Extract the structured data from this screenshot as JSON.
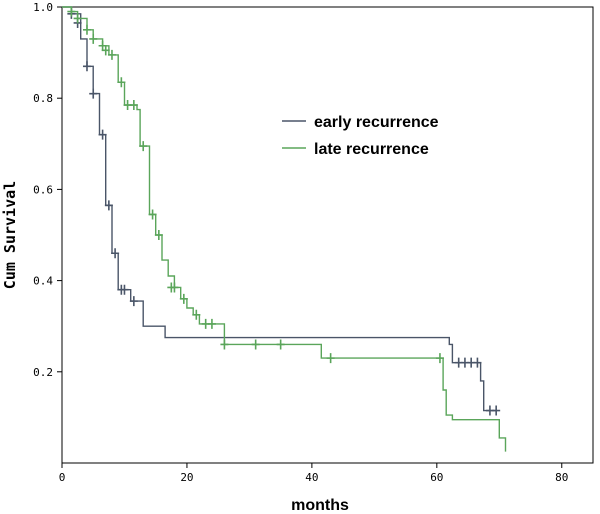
{
  "chart_data": {
    "type": "line",
    "xlabel": "months",
    "ylabel": "Cum Survival",
    "xlim": [
      0,
      85
    ],
    "ylim": [
      0,
      1.0
    ],
    "x_ticks": [
      "0",
      "20",
      "40",
      "60",
      "80"
    ],
    "y_ticks": [
      "0.2",
      "0.4",
      "0.6",
      "0.8",
      "1.0"
    ],
    "y_tick_values": [
      0.2,
      0.4,
      0.6,
      0.8,
      1.0
    ],
    "x_tick_values": [
      0,
      20,
      40,
      60,
      80
    ],
    "grid": false,
    "legend_position": "top-right",
    "series": [
      {
        "name": "early recurrence",
        "color": "#4a5568",
        "steps": [
          [
            0,
            1.0
          ],
          [
            1.5,
            0.985
          ],
          [
            3,
            0.93
          ],
          [
            4,
            0.87
          ],
          [
            5,
            0.81
          ],
          [
            6,
            0.72
          ],
          [
            7,
            0.565
          ],
          [
            8,
            0.46
          ],
          [
            9,
            0.38
          ],
          [
            11,
            0.355
          ],
          [
            13,
            0.3
          ],
          [
            16.5,
            0.275
          ],
          [
            62,
            0.26
          ],
          [
            62.5,
            0.22
          ],
          [
            67,
            0.18
          ],
          [
            67.5,
            0.115
          ],
          [
            69.5,
            0.115
          ]
        ],
        "censored": [
          [
            1.5,
            0.985
          ],
          [
            2.5,
            0.965
          ],
          [
            4,
            0.87
          ],
          [
            5,
            0.81
          ],
          [
            6.5,
            0.72
          ],
          [
            7.5,
            0.565
          ],
          [
            8.5,
            0.46
          ],
          [
            9.5,
            0.38
          ],
          [
            10,
            0.38
          ],
          [
            11.5,
            0.355
          ],
          [
            63.5,
            0.22
          ],
          [
            64.5,
            0.22
          ],
          [
            65.5,
            0.22
          ],
          [
            66.5,
            0.22
          ],
          [
            68.5,
            0.115
          ],
          [
            69.5,
            0.115
          ]
        ]
      },
      {
        "name": "late recurrence",
        "color": "#5aa55a",
        "steps": [
          [
            0,
            1.0
          ],
          [
            1.5,
            0.99
          ],
          [
            2.5,
            0.975
          ],
          [
            4,
            0.95
          ],
          [
            5,
            0.93
          ],
          [
            6.5,
            0.915
          ],
          [
            7.5,
            0.895
          ],
          [
            9,
            0.835
          ],
          [
            10,
            0.785
          ],
          [
            12,
            0.775
          ],
          [
            12.5,
            0.695
          ],
          [
            14,
            0.545
          ],
          [
            15,
            0.5
          ],
          [
            16,
            0.445
          ],
          [
            17,
            0.41
          ],
          [
            18,
            0.385
          ],
          [
            19,
            0.36
          ],
          [
            20,
            0.34
          ],
          [
            21,
            0.325
          ],
          [
            22,
            0.305
          ],
          [
            26,
            0.26
          ],
          [
            41.5,
            0.23
          ],
          [
            61,
            0.16
          ],
          [
            61.5,
            0.105
          ],
          [
            62.5,
            0.095
          ],
          [
            70,
            0.055
          ],
          [
            71,
            0.025
          ]
        ],
        "censored": [
          [
            1.5,
            0.99
          ],
          [
            2.5,
            0.975
          ],
          [
            4,
            0.95
          ],
          [
            5,
            0.93
          ],
          [
            6.5,
            0.915
          ],
          [
            7,
            0.905
          ],
          [
            8,
            0.895
          ],
          [
            9.5,
            0.835
          ],
          [
            10.5,
            0.785
          ],
          [
            11.5,
            0.785
          ],
          [
            13,
            0.695
          ],
          [
            14.5,
            0.545
          ],
          [
            15.5,
            0.5
          ],
          [
            17.5,
            0.385
          ],
          [
            18,
            0.385
          ],
          [
            19.5,
            0.36
          ],
          [
            21.5,
            0.325
          ],
          [
            23,
            0.305
          ],
          [
            24,
            0.305
          ],
          [
            26,
            0.26
          ],
          [
            31,
            0.26
          ],
          [
            35,
            0.26
          ],
          [
            43,
            0.23
          ],
          [
            60.5,
            0.23
          ]
        ]
      }
    ]
  }
}
